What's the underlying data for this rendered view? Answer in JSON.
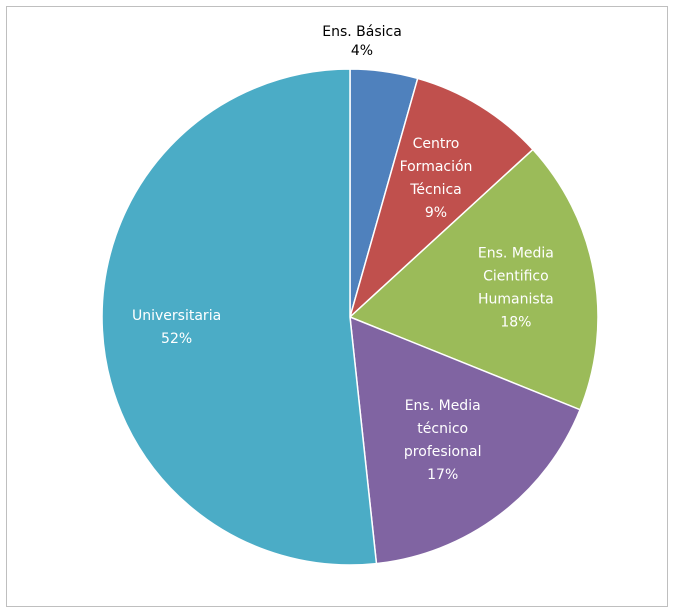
{
  "chart_data": {
    "type": "pie",
    "title": "",
    "start_angle_deg": 0,
    "direction": "clockwise",
    "slices": [
      {
        "name": "Ens. Básica",
        "lines": [
          "Ens. Básica"
        ],
        "percent_label": "4%",
        "value": 4.4,
        "color": "#4f81bd",
        "label_position": "outside"
      },
      {
        "name": "Centro Formación Técnica",
        "lines": [
          "Centro",
          "Formación",
          "Técnica"
        ],
        "percent_label": "9%",
        "value": 8.8,
        "color": "#c0504d",
        "label_position": "inside"
      },
      {
        "name": "Ens. Media Cientifico Humanista",
        "lines": [
          "Ens. Media",
          "Cientifico",
          "Humanista"
        ],
        "percent_label": "18%",
        "value": 17.9,
        "color": "#9bbb59",
        "label_position": "inside"
      },
      {
        "name": "Ens. Media técnico profesional",
        "lines": [
          "Ens. Media",
          "técnico",
          "profesional"
        ],
        "percent_label": "17%",
        "value": 17.2,
        "color": "#8064a2",
        "label_position": "inside"
      },
      {
        "name": "Universitaria",
        "lines": [
          "Universitaria"
        ],
        "percent_label": "52%",
        "value": 51.7,
        "color": "#4bacc6",
        "label_position": "inside"
      }
    ]
  }
}
